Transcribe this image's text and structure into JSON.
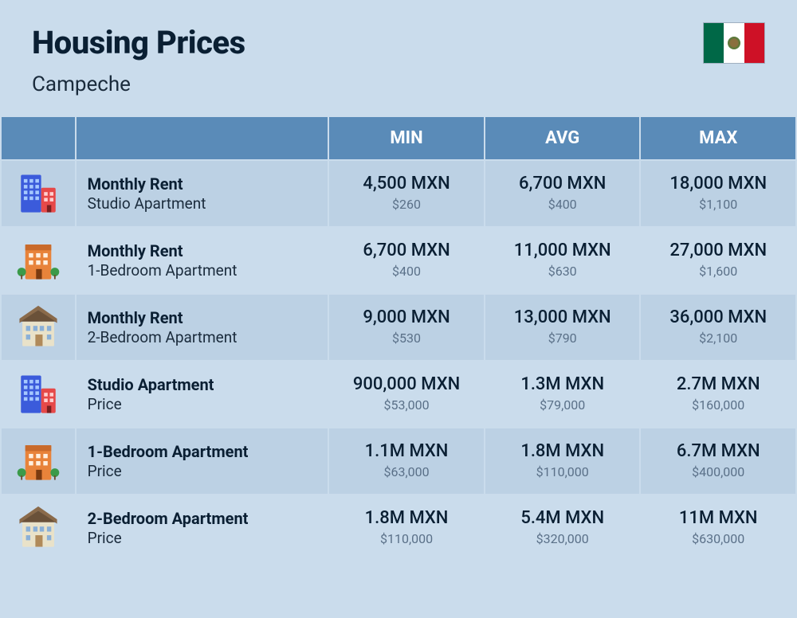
{
  "header": {
    "title": "Housing Prices",
    "subtitle": "Campeche"
  },
  "table": {
    "columns": {
      "min": "MIN",
      "avg": "AVG",
      "max": "MAX"
    },
    "header_bg": "#5a8bb8",
    "header_fg": "#ffffff",
    "row_odd_bg": "#bcd1e4",
    "row_even_bg": "#cadcec",
    "rows": [
      {
        "icon": "tall-building",
        "title": "Monthly Rent",
        "sub": "Studio Apartment",
        "min_main": "4,500 MXN",
        "min_sub": "$260",
        "avg_main": "6,700 MXN",
        "avg_sub": "$400",
        "max_main": "18,000 MXN",
        "max_sub": "$1,100"
      },
      {
        "icon": "orange-building",
        "title": "Monthly Rent",
        "sub": "1-Bedroom Apartment",
        "min_main": "6,700 MXN",
        "min_sub": "$400",
        "avg_main": "11,000 MXN",
        "avg_sub": "$630",
        "max_main": "27,000 MXN",
        "max_sub": "$1,600"
      },
      {
        "icon": "house",
        "title": "Monthly Rent",
        "sub": "2-Bedroom Apartment",
        "min_main": "9,000 MXN",
        "min_sub": "$530",
        "avg_main": "13,000 MXN",
        "avg_sub": "$790",
        "max_main": "36,000 MXN",
        "max_sub": "$2,100"
      },
      {
        "icon": "tall-building",
        "title": "Studio Apartment",
        "sub": "Price",
        "min_main": "900,000 MXN",
        "min_sub": "$53,000",
        "avg_main": "1.3M MXN",
        "avg_sub": "$79,000",
        "max_main": "2.7M MXN",
        "max_sub": "$160,000"
      },
      {
        "icon": "orange-building",
        "title": "1-Bedroom Apartment",
        "sub": "Price",
        "min_main": "1.1M MXN",
        "min_sub": "$63,000",
        "avg_main": "1.8M MXN",
        "avg_sub": "$110,000",
        "max_main": "6.7M MXN",
        "max_sub": "$400,000"
      },
      {
        "icon": "house",
        "title": "2-Bedroom Apartment",
        "sub": "Price",
        "min_main": "1.8M MXN",
        "min_sub": "$110,000",
        "avg_main": "5.4M MXN",
        "avg_sub": "$320,000",
        "max_main": "11M MXN",
        "max_sub": "$630,000"
      }
    ]
  },
  "colors": {
    "page_bg": "#cadcec",
    "title_color": "#0a1f33",
    "subtitle_color": "#1a2b3c",
    "val_sub_color": "#5a7088",
    "flag_green": "#006847",
    "flag_white": "#ffffff",
    "flag_red": "#ce1126"
  },
  "typography": {
    "title_fontsize": 40,
    "title_weight": 800,
    "subtitle_fontsize": 26,
    "header_fontsize": 22,
    "row_title_fontsize": 20,
    "row_sub_fontsize": 19,
    "val_main_fontsize": 22,
    "val_sub_fontsize": 16
  }
}
